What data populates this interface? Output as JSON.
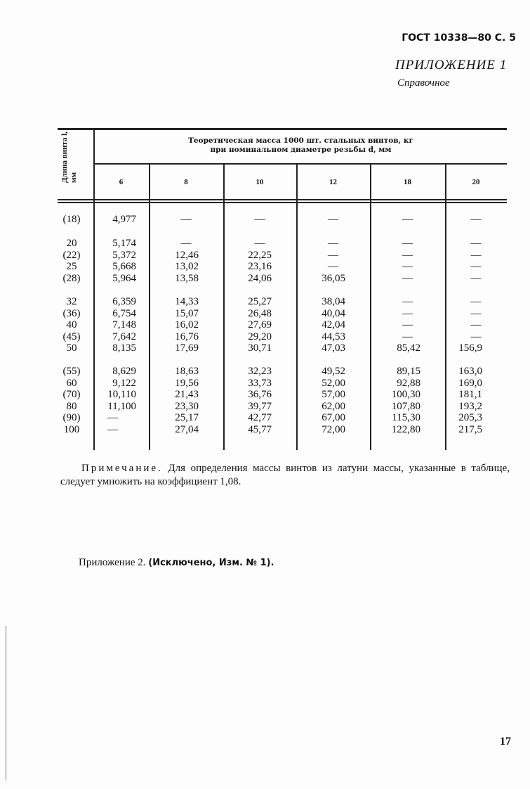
{
  "header": {
    "standard": "ГОСТ 10338—80 С. 5",
    "appendix": "ПРИЛОЖЕНИЕ 1",
    "appendix_type": "Справочное"
  },
  "table": {
    "row_header": "Длина винта l, мм",
    "group_header_line1": "Теоретическая масса 1000 шт. стальных винтов, кг",
    "group_header_line2": "при номинальном диаметре резьбы d, мм",
    "columns": [
      "6",
      "8",
      "10",
      "12",
      "18",
      "20"
    ],
    "groups": [
      [
        [
          "(18)",
          "4,977",
          "—",
          "—",
          "—",
          "—",
          "—"
        ]
      ],
      [
        [
          "20",
          "5,174",
          "—",
          "—",
          "—",
          "—",
          "—"
        ],
        [
          "(22)",
          "5,372",
          "12,46",
          "22,25",
          "—",
          "—",
          "—"
        ],
        [
          "25",
          "5,668",
          "13,02",
          "23,16",
          "—",
          "—",
          "—"
        ],
        [
          "(28)",
          "5,964",
          "13,58",
          "24,06",
          "36,05",
          "—",
          "—"
        ]
      ],
      [
        [
          "32",
          "6,359",
          "14,33",
          "25,27",
          "38,04",
          "—",
          "—"
        ],
        [
          "(36)",
          "6,754",
          "15,07",
          "26,48",
          "40,04",
          "—",
          "—"
        ],
        [
          "40",
          "7,148",
          "16,02",
          "27,69",
          "42,04",
          "—",
          "—"
        ],
        [
          "(45)",
          "7,642",
          "16,76",
          "29,20",
          "44,53",
          "—",
          "—"
        ],
        [
          "50",
          "8,135",
          "17,69",
          "30,71",
          "47,03",
          "85,42",
          "156,9"
        ]
      ],
      [
        [
          "(55)",
          "8,629",
          "18,63",
          "32,23",
          "49,52",
          "89,15",
          "163,0"
        ],
        [
          "60",
          "9,122",
          "19,56",
          "33,73",
          "52,00",
          "92,88",
          "169,0"
        ],
        [
          "(70)",
          "10,110",
          "21,43",
          "36,76",
          "57,00",
          "100,30",
          "181,1"
        ],
        [
          "80",
          "11,100",
          "23,30",
          "39,77",
          "62,00",
          "107,80",
          "193,2"
        ],
        [
          "(90)",
          "—",
          "25,17",
          "42,77",
          "67,00",
          "115,30",
          "205,3"
        ],
        [
          "100",
          "—",
          "27,04",
          "45,77",
          "72,00",
          "122,80",
          "217,5"
        ]
      ]
    ]
  },
  "note": {
    "label": "Примечание.",
    "text": "Для определения массы винтов из латуни массы, указанные в таблице, следует умножить на коэффициент 1,08."
  },
  "appendix2": {
    "text": "Приложение 2.",
    "bold": "(Исключено, Изм. № 1)."
  },
  "page_number": "17"
}
